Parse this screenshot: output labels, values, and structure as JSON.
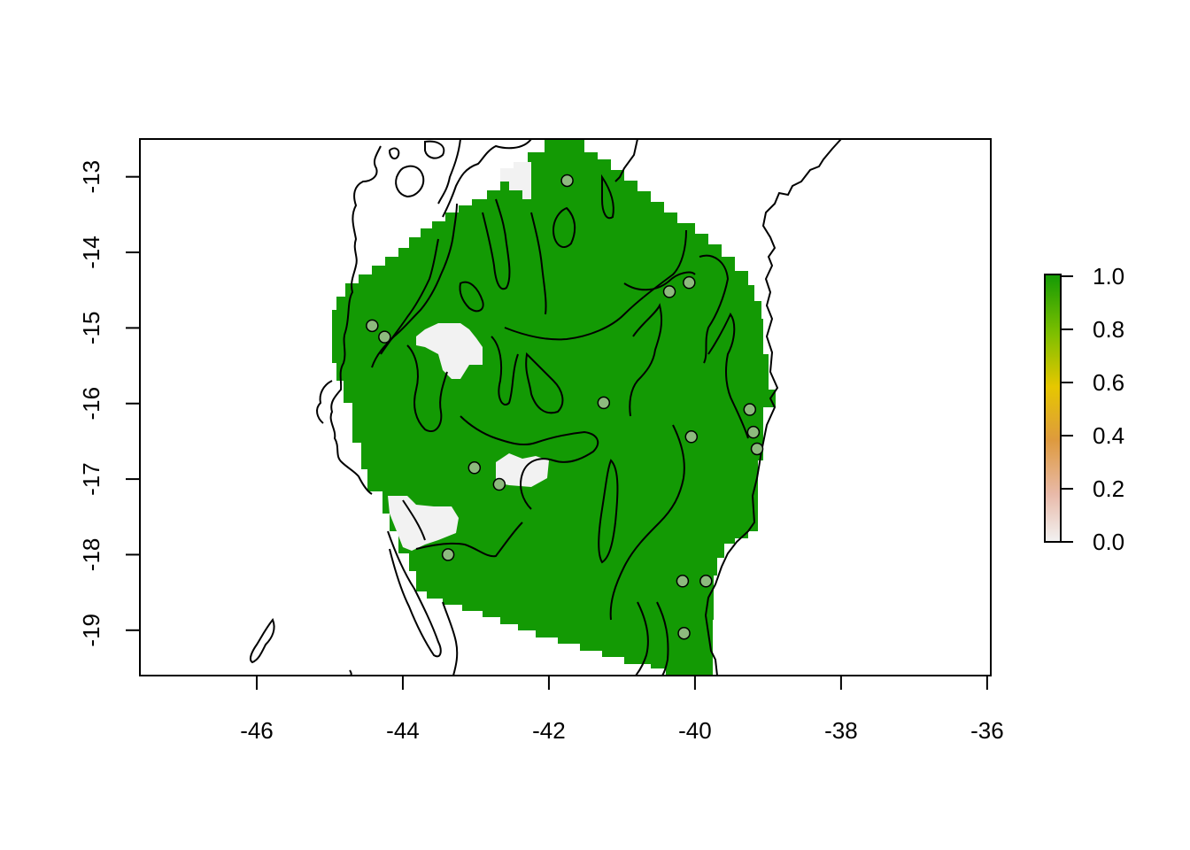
{
  "map": {
    "x_ticks": [
      "-46",
      "-44",
      "-42",
      "-40",
      "-38",
      "-36"
    ],
    "y_ticks": [
      "-13",
      "-14",
      "-15",
      "-16",
      "-17",
      "-18",
      "-19"
    ],
    "x_tick_values": [
      -46,
      -44,
      -42,
      -40,
      -38,
      -36
    ],
    "y_tick_values": [
      -13,
      -14,
      -15,
      -16,
      -17,
      -18,
      -19
    ],
    "xlim": [
      -47.6,
      -35.95
    ],
    "ylim": [
      -19.6,
      -12.5
    ],
    "legend": {
      "labels": [
        "1.0",
        "0.8",
        "0.6",
        "0.4",
        "0.2",
        "0.0"
      ],
      "values": [
        1.0,
        0.8,
        0.6,
        0.4,
        0.2,
        0.0
      ]
    },
    "colors": {
      "presence": "#139A04",
      "absence": "#F2F2F2",
      "point_fill": "#8DBA7E",
      "outline": "#000000"
    },
    "points": [
      {
        "lon": -41.75,
        "lat": -13.05
      },
      {
        "lon": -40.35,
        "lat": -14.52
      },
      {
        "lon": -40.08,
        "lat": -14.4
      },
      {
        "lon": -44.42,
        "lat": -14.97
      },
      {
        "lon": -44.25,
        "lat": -15.12
      },
      {
        "lon": -41.25,
        "lat": -15.99
      },
      {
        "lon": -39.25,
        "lat": -16.08
      },
      {
        "lon": -39.2,
        "lat": -16.38
      },
      {
        "lon": -39.15,
        "lat": -16.6
      },
      {
        "lon": -40.05,
        "lat": -16.44
      },
      {
        "lon": -43.02,
        "lat": -16.85
      },
      {
        "lon": -42.68,
        "lat": -17.07
      },
      {
        "lon": -43.38,
        "lat": -18.0
      },
      {
        "lon": -40.17,
        "lat": -18.35
      },
      {
        "lon": -39.85,
        "lat": -18.35
      },
      {
        "lon": -40.15,
        "lat": -19.04
      }
    ]
  }
}
